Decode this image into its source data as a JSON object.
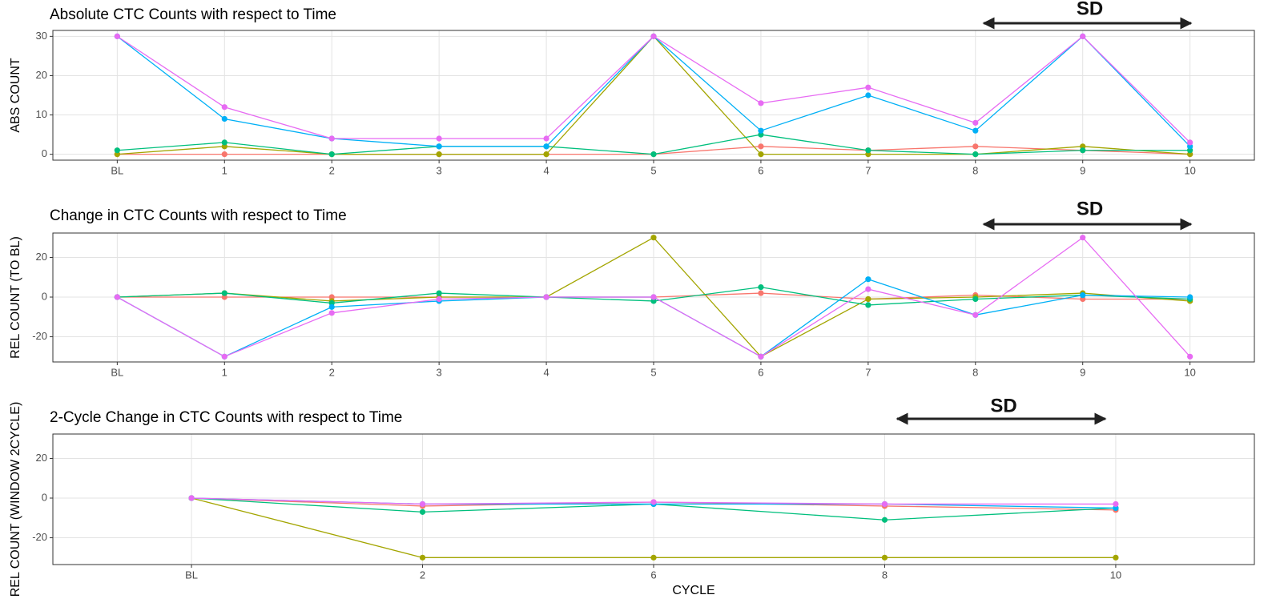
{
  "chart_data": [
    {
      "type": "line",
      "title": "Absolute CTC Counts with respect to Time",
      "ylabel": "ABS COUNT",
      "annotations": [
        "SD"
      ],
      "categories": [
        "BL",
        "1",
        "2",
        "3",
        "4",
        "5",
        "6",
        "7",
        "8",
        "9",
        "10"
      ],
      "ylim": [
        -1.5,
        31.5
      ],
      "yticks": [
        0,
        10,
        20,
        30
      ],
      "grid": true,
      "series": [
        {
          "color": "#F8766D",
          "values": [
            0,
            0,
            0,
            0,
            0,
            0,
            2,
            1,
            2,
            1,
            0
          ]
        },
        {
          "color": "#A3A500",
          "values": [
            0,
            2,
            0,
            0,
            0,
            30,
            0,
            0,
            0,
            2,
            0
          ]
        },
        {
          "color": "#00BF7D",
          "values": [
            1,
            3,
            0,
            2,
            2,
            0,
            5,
            1,
            0,
            1,
            1
          ]
        },
        {
          "color": "#00B0F6",
          "values": [
            30,
            9,
            4,
            2,
            2,
            30,
            6,
            15,
            6,
            30,
            2
          ]
        },
        {
          "color": "#E76BF3",
          "values": [
            30,
            12,
            4,
            4,
            4,
            30,
            13,
            17,
            8,
            30,
            3
          ]
        }
      ]
    },
    {
      "type": "line",
      "title": "Change in CTC Counts with respect to Time",
      "ylabel": "REL COUNT (TO BL)",
      "annotations": [
        "SD"
      ],
      "categories": [
        "BL",
        "1",
        "2",
        "3",
        "4",
        "5",
        "6",
        "7",
        "8",
        "9",
        "10"
      ],
      "ylim": [
        -32.7,
        32.3
      ],
      "yticks": [
        -20,
        0,
        20
      ],
      "grid": true,
      "series": [
        {
          "color": "#F8766D",
          "values": [
            0,
            0,
            0,
            0,
            0,
            0,
            2,
            -1,
            1,
            -1,
            -1
          ]
        },
        {
          "color": "#A3A500",
          "values": [
            0,
            2,
            -2,
            0,
            0,
            30,
            -30,
            -1,
            0,
            2,
            -2
          ]
        },
        {
          "color": "#00BF7D",
          "values": [
            0,
            2,
            -3,
            2,
            0,
            -2,
            5,
            -4,
            -1,
            1,
            -1
          ]
        },
        {
          "color": "#00B0F6",
          "values": [
            0,
            -30,
            -5,
            -2,
            0,
            0,
            -30,
            9,
            -9,
            1,
            0
          ]
        },
        {
          "color": "#E76BF3",
          "values": [
            0,
            -30,
            -8,
            -1,
            0,
            0,
            -30,
            4,
            -9,
            30,
            -30
          ]
        }
      ]
    },
    {
      "type": "line",
      "title": "2-Cycle Change in CTC Counts with respect to Time",
      "ylabel": "REL COUNT (WINDOW 2CYCLE)",
      "xlabel": "CYCLE",
      "annotations": [
        "SD"
      ],
      "categories": [
        "BL",
        "2",
        "6",
        "8",
        "10"
      ],
      "ylim": [
        -33.5,
        32.3
      ],
      "yticks": [
        -20,
        0,
        20
      ],
      "grid": true,
      "series": [
        {
          "color": "#F8766D",
          "values": [
            0,
            -4,
            -2,
            -4,
            -6
          ]
        },
        {
          "color": "#A3A500",
          "values": [
            0,
            -30,
            -30,
            -30,
            -30
          ]
        },
        {
          "color": "#00BF7D",
          "values": [
            0,
            -7,
            -3,
            -11,
            -5
          ]
        },
        {
          "color": "#00B0F6",
          "values": [
            0,
            -3,
            -3,
            -3,
            -5
          ]
        },
        {
          "color": "#E76BF3",
          "values": [
            0,
            -3,
            -2,
            -3,
            -3
          ]
        }
      ]
    }
  ]
}
